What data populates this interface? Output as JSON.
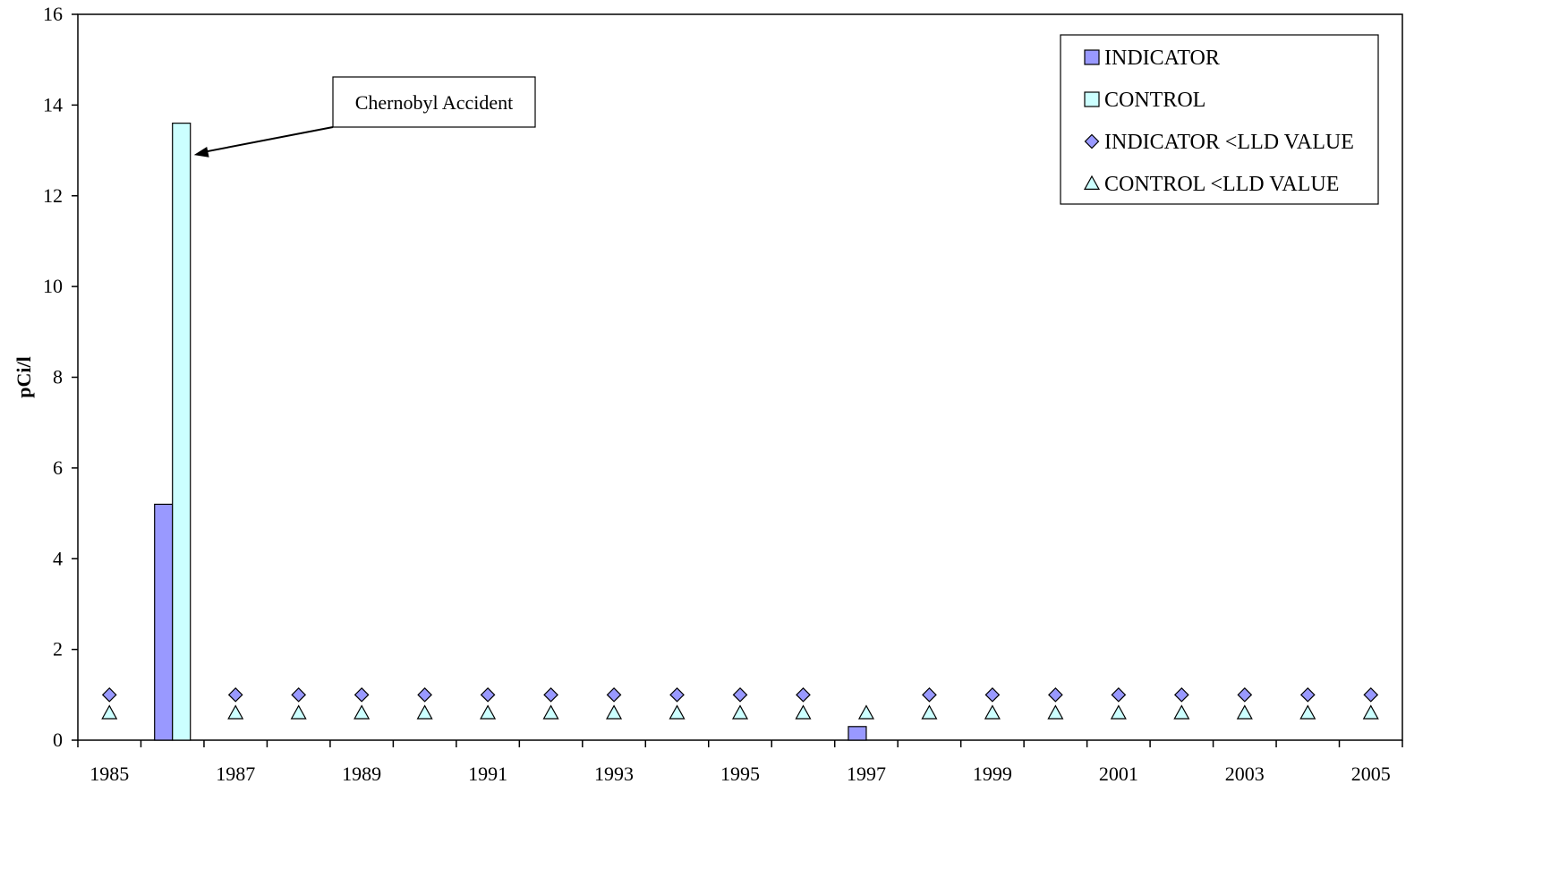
{
  "chart_data": {
    "type": "bar",
    "title": "",
    "xlabel": "",
    "ylabel": "pCi/l",
    "ylim": [
      0,
      16
    ],
    "yticks": [
      0,
      2,
      4,
      6,
      8,
      10,
      12,
      14,
      16
    ],
    "categories": [
      "1985",
      "1986",
      "1987",
      "1988",
      "1989",
      "1990",
      "1991",
      "1992",
      "1993",
      "1994",
      "1995",
      "1996",
      "1997",
      "1998",
      "1999",
      "2000",
      "2001",
      "2002",
      "2003",
      "2004",
      "2005"
    ],
    "x_tick_labels": [
      "1985",
      "1987",
      "1989",
      "1991",
      "1993",
      "1995",
      "1997",
      "1999",
      "2001",
      "2003",
      "2005"
    ],
    "grid": false,
    "legend_position": "top-right",
    "series": [
      {
        "name": "INDICATOR",
        "kind": "bar",
        "color": "#9999ff",
        "values": [
          null,
          5.2,
          null,
          null,
          null,
          null,
          null,
          null,
          null,
          null,
          null,
          null,
          0.3,
          null,
          null,
          null,
          null,
          null,
          null,
          null,
          null
        ]
      },
      {
        "name": "CONTROL",
        "kind": "bar",
        "color": "#ccffff",
        "values": [
          null,
          13.6,
          null,
          null,
          null,
          null,
          null,
          null,
          null,
          null,
          null,
          null,
          null,
          null,
          null,
          null,
          null,
          null,
          null,
          null,
          null
        ]
      },
      {
        "name": "INDICATOR <LLD VALUE",
        "kind": "marker",
        "marker": "diamond",
        "color": "#9999ff",
        "values": [
          1.0,
          null,
          1.0,
          1.0,
          1.0,
          1.0,
          1.0,
          1.0,
          1.0,
          1.0,
          1.0,
          1.0,
          null,
          1.0,
          1.0,
          1.0,
          1.0,
          1.0,
          1.0,
          1.0,
          1.0
        ]
      },
      {
        "name": "CONTROL <LLD VALUE",
        "kind": "marker",
        "marker": "triangle",
        "color": "#ccffff",
        "values": [
          0.6,
          null,
          0.6,
          0.6,
          0.6,
          0.6,
          0.6,
          0.6,
          0.6,
          0.6,
          0.6,
          0.6,
          0.6,
          0.6,
          0.6,
          0.6,
          0.6,
          0.6,
          0.6,
          0.6,
          0.6
        ]
      }
    ],
    "annotations": [
      {
        "text": "Chernobyl Accident",
        "points_to_category": "1986",
        "points_to_value": 13.0
      }
    ]
  }
}
